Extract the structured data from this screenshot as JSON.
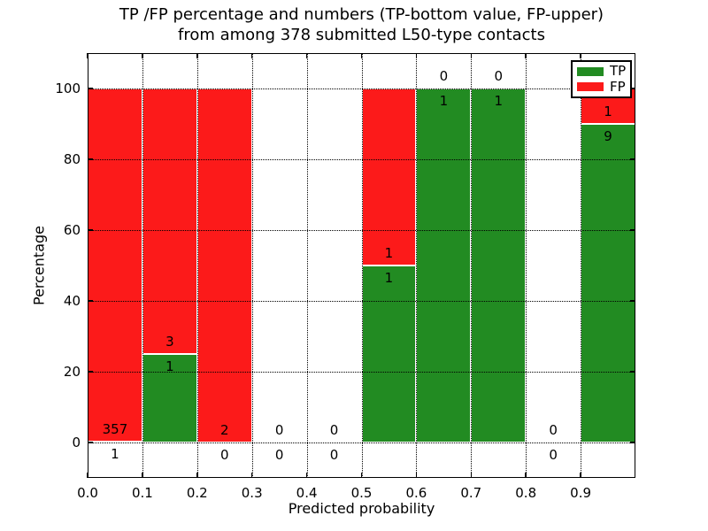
{
  "title": {
    "line1": "TP /FP percentage and numbers (TP-bottom value, FP-upper)",
    "line2": "from among 378 submitted L50-type contacts"
  },
  "axes": {
    "xlabel": "Predicted probability",
    "ylabel": "Percentage",
    "xtick_labels": [
      "0.0",
      "0.1",
      "0.2",
      "0.3",
      "0.4",
      "0.5",
      "0.6",
      "0.7",
      "0.8",
      "0.9"
    ],
    "ytick_labels": [
      "0",
      "20",
      "40",
      "60",
      "80",
      "100"
    ]
  },
  "legend": {
    "items": [
      {
        "label": "TP",
        "color": "#228b22"
      },
      {
        "label": "FP",
        "color": "#fc1a1a"
      }
    ],
    "position": "upper right"
  },
  "colors": {
    "tp": "#228b22",
    "fp": "#fc1a1a",
    "bar_edge": "#ffffff",
    "grid": "#000000",
    "background": "#ffffff"
  },
  "chart_data": {
    "type": "bar",
    "stacked": true,
    "title": "TP /FP percentage and numbers (TP-bottom value, FP-upper) from among 378 submitted L50-type contacts",
    "xlabel": "Predicted probability",
    "ylabel": "Percentage",
    "xlim": [
      0.0,
      1.0
    ],
    "ylim": [
      -10,
      110
    ],
    "xticks": [
      0.0,
      0.1,
      0.2,
      0.3,
      0.4,
      0.5,
      0.6,
      0.7,
      0.8,
      0.9
    ],
    "yticks": [
      0,
      20,
      40,
      60,
      80,
      100
    ],
    "grid": "dotted, drawn above bars",
    "legend_position": "upper right",
    "total_contacts": 378,
    "bin_width": 0.1,
    "annotation_rule": "TP count below segment boundary, FP count above it",
    "bins": [
      {
        "x_start": 0.0,
        "x_end": 0.1,
        "tp_count": 1,
        "fp_count": 357,
        "tp_pct": 0.28,
        "fp_pct": 99.72
      },
      {
        "x_start": 0.1,
        "x_end": 0.2,
        "tp_count": 1,
        "fp_count": 3,
        "tp_pct": 25,
        "fp_pct": 75
      },
      {
        "x_start": 0.2,
        "x_end": 0.3,
        "tp_count": 0,
        "fp_count": 2,
        "tp_pct": 0,
        "fp_pct": 100
      },
      {
        "x_start": 0.3,
        "x_end": 0.4,
        "tp_count": 0,
        "fp_count": 0,
        "tp_pct": 0,
        "fp_pct": 0
      },
      {
        "x_start": 0.4,
        "x_end": 0.5,
        "tp_count": 0,
        "fp_count": 0,
        "tp_pct": 0,
        "fp_pct": 0
      },
      {
        "x_start": 0.5,
        "x_end": 0.6,
        "tp_count": 1,
        "fp_count": 1,
        "tp_pct": 50,
        "fp_pct": 50
      },
      {
        "x_start": 0.6,
        "x_end": 0.7,
        "tp_count": 1,
        "fp_count": 0,
        "tp_pct": 100,
        "fp_pct": 0
      },
      {
        "x_start": 0.7,
        "x_end": 0.8,
        "tp_count": 1,
        "fp_count": 0,
        "tp_pct": 100,
        "fp_pct": 0
      },
      {
        "x_start": 0.8,
        "x_end": 0.9,
        "tp_count": 0,
        "fp_count": 0,
        "tp_pct": 0,
        "fp_pct": 0
      },
      {
        "x_start": 0.9,
        "x_end": 1.0,
        "tp_count": 9,
        "fp_count": 1,
        "tp_pct": 90,
        "fp_pct": 10
      }
    ],
    "series": [
      {
        "name": "TP",
        "color": "#228b22",
        "counts": [
          1,
          1,
          0,
          0,
          0,
          1,
          1,
          1,
          0,
          9
        ]
      },
      {
        "name": "FP",
        "color": "#fc1a1a",
        "counts": [
          357,
          3,
          2,
          0,
          0,
          1,
          0,
          0,
          0,
          1
        ]
      }
    ]
  }
}
